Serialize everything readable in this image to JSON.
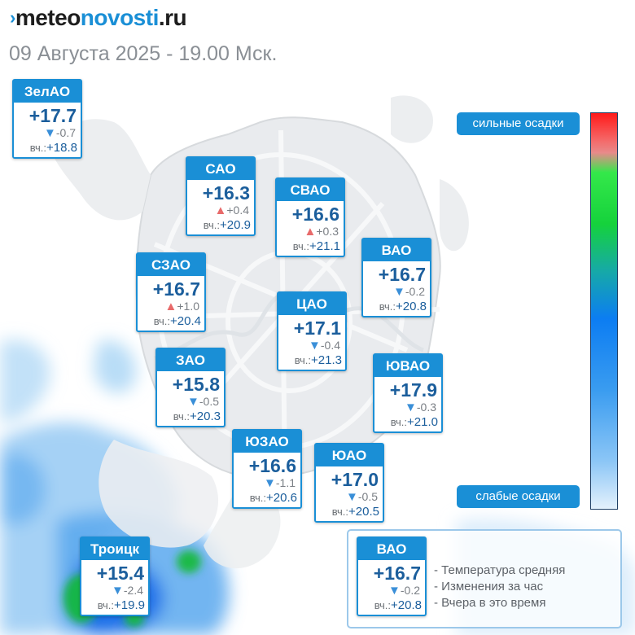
{
  "brand": {
    "mark": "›",
    "part1": "meteo",
    "part2": "novosti",
    "part3": ".ru"
  },
  "subtitle": "09 Августа 2025 - 19.00 Мск.",
  "colors": {
    "accent": "#1a8fd6",
    "temp_text": "#1b5e9c",
    "arrow_down": "#3a8fd8",
    "arrow_up": "#e86a6a"
  },
  "districts": [
    {
      "name": "ЗелАО",
      "temp": "+17.7",
      "trend": "down",
      "arrow": "▼",
      "change": "-0.7",
      "yest_label": "вч.:",
      "yest": "+18.8"
    },
    {
      "name": "САО",
      "temp": "+16.3",
      "trend": "up",
      "arrow": "▲",
      "change": "+0.4",
      "yest_label": "вч.:",
      "yest": "+20.9"
    },
    {
      "name": "СВАО",
      "temp": "+16.6",
      "trend": "up",
      "arrow": "▲",
      "change": "+0.3",
      "yest_label": "вч.:",
      "yest": "+21.1"
    },
    {
      "name": "ВАО",
      "temp": "+16.7",
      "trend": "down",
      "arrow": "▼",
      "change": "-0.2",
      "yest_label": "вч.:",
      "yest": "+20.8"
    },
    {
      "name": "СЗАО",
      "temp": "+16.7",
      "trend": "up",
      "arrow": "▲",
      "change": "+1.0",
      "yest_label": "вч.:",
      "yest": "+20.4"
    },
    {
      "name": "ЦАО",
      "temp": "+17.1",
      "trend": "down",
      "arrow": "▼",
      "change": "-0.4",
      "yest_label": "вч.:",
      "yest": "+21.3"
    },
    {
      "name": "ЗАО",
      "temp": "+15.8",
      "trend": "down",
      "arrow": "▼",
      "change": "-0.5",
      "yest_label": "вч.:",
      "yest": "+20.3"
    },
    {
      "name": "ЮВАО",
      "temp": "+17.9",
      "trend": "down",
      "arrow": "▼",
      "change": "-0.3",
      "yest_label": "вч.:",
      "yest": "+21.0"
    },
    {
      "name": "ЮЗАО",
      "temp": "+16.6",
      "trend": "down",
      "arrow": "▼",
      "change": "-1.1",
      "yest_label": "вч.:",
      "yest": "+20.6"
    },
    {
      "name": "ЮАО",
      "temp": "+17.0",
      "trend": "down",
      "arrow": "▼",
      "change": "-0.5",
      "yest_label": "вч.:",
      "yest": "+20.5"
    },
    {
      "name": "Троицк",
      "temp": "+15.4",
      "trend": "down",
      "arrow": "▼",
      "change": "-2.4",
      "yest_label": "вч.:",
      "yest": "+19.9"
    }
  ],
  "scale": {
    "top_label": "сильные осадки",
    "bottom_label": "слабые осадки"
  },
  "legend": {
    "example": {
      "name": "ВАО",
      "temp": "+16.7",
      "arrow": "▼",
      "change": "-0.2",
      "yest_label": "вч.:",
      "yest": "+20.8"
    },
    "items": [
      "- Температура средняя",
      "- Изменения за час",
      "- Вчера в это время"
    ]
  }
}
